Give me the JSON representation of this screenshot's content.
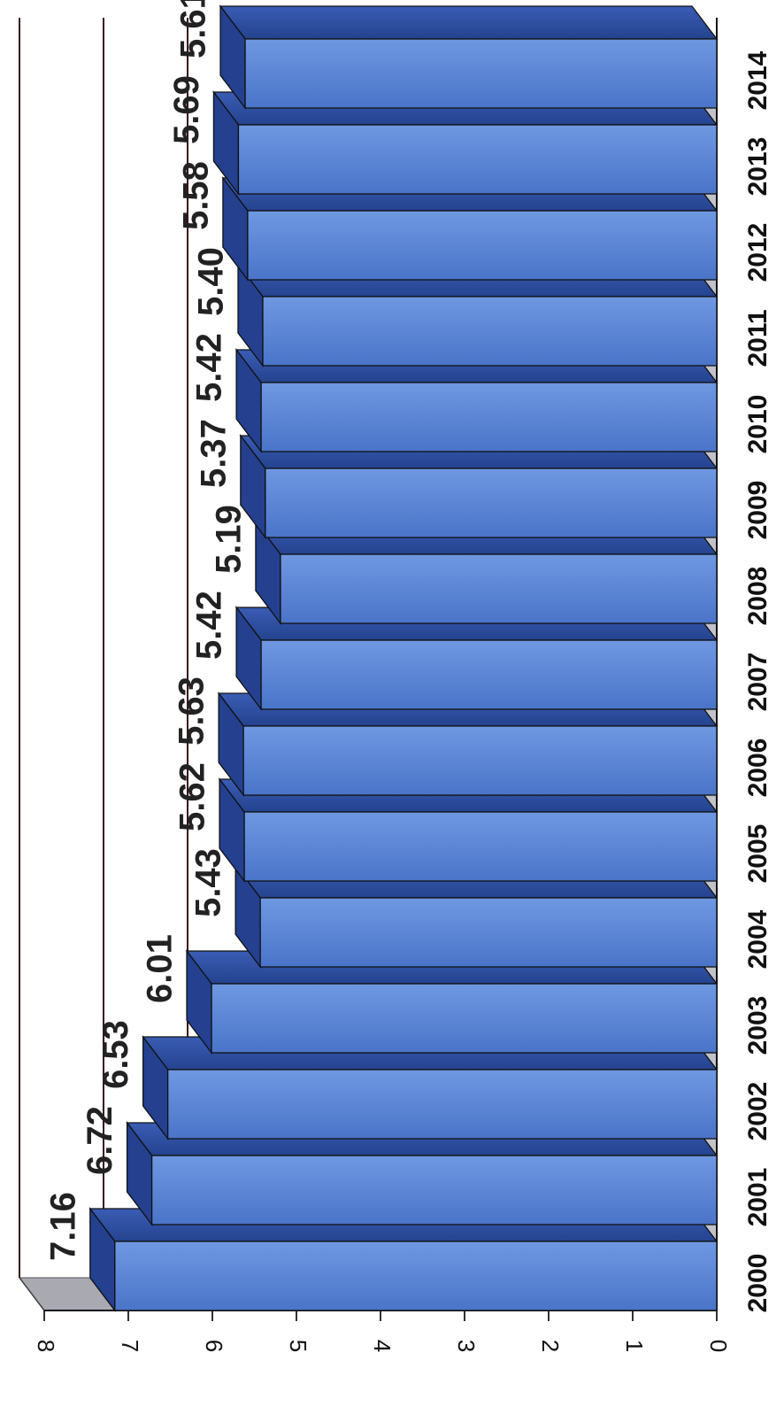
{
  "chart_data": {
    "type": "bar",
    "orientation": "vertical, page rotated 90 degrees clockwise",
    "style": "3d",
    "title": "",
    "xlabel": "",
    "ylabel": "",
    "categories": [
      "2000",
      "2001",
      "2002",
      "2003",
      "2004",
      "2005",
      "2006",
      "2007",
      "2008",
      "2009",
      "2010",
      "2011",
      "2012",
      "2013",
      "2014"
    ],
    "values": [
      7.16,
      6.72,
      6.53,
      6.01,
      5.43,
      5.62,
      5.63,
      5.42,
      5.19,
      5.37,
      5.42,
      5.4,
      5.58,
      5.69,
      5.61
    ],
    "data_labels": [
      "7.16",
      "6.72",
      "6.53",
      "6.01",
      "5.43",
      "5.62",
      "5.63",
      "5.42",
      "5.19",
      "5.37",
      "5.42",
      "5.40",
      "5.58",
      "5.69",
      "5.61"
    ],
    "ylim": [
      0,
      8
    ],
    "y_ticks": [
      "0",
      "1",
      "2",
      "3",
      "4",
      "5",
      "6",
      "7",
      "8"
    ],
    "grid": true,
    "legend": "none",
    "colors": {
      "bar_front": "#5b86d6",
      "bar_top": "#2e4fa6",
      "bar_side": "#24408f",
      "floor": "#a9a9b2",
      "wall": "#c2c2ca",
      "gridline": "#3b1414",
      "text": "#111111"
    }
  }
}
